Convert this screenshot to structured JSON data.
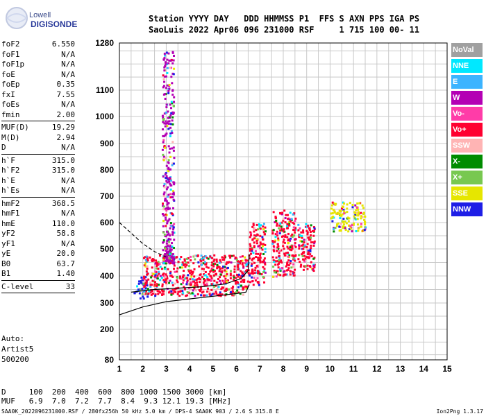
{
  "logo": {
    "line1": "Lowell",
    "line2": "DIGISONDE"
  },
  "header": {
    "line1": "Station YYYY DAY   DDD HHMMSS P1  FFS S AXN PPS IGA PS",
    "line2": "SaoLuis 2022 Apr06 096 231000 RSF     1 715 100 00- 11"
  },
  "params": [
    {
      "label": "foF2",
      "value": "6.550"
    },
    {
      "label": "foF1",
      "value": "N/A"
    },
    {
      "label": "foF1p",
      "value": "N/A"
    },
    {
      "label": "foE",
      "value": "N/A"
    },
    {
      "label": "foEp",
      "value": "0.35"
    },
    {
      "label": "fxI",
      "value": "7.55"
    },
    {
      "label": "foEs",
      "value": "N/A"
    },
    {
      "label": "fmin",
      "value": "2.00"
    },
    {
      "sep": true
    },
    {
      "label": "MUF(D)",
      "value": "19.29"
    },
    {
      "label": "M(D)",
      "value": "2.94"
    },
    {
      "label": "D",
      "value": "N/A"
    },
    {
      "sep": true
    },
    {
      "label": "h`F",
      "value": "315.0"
    },
    {
      "label": "h`F2",
      "value": "315.0"
    },
    {
      "label": "h`E",
      "value": "N/A"
    },
    {
      "label": "h`Es",
      "value": "N/A"
    },
    {
      "sep": true
    },
    {
      "label": "hmF2",
      "value": "368.5"
    },
    {
      "label": "hmF1",
      "value": "N/A"
    },
    {
      "label": "hmE",
      "value": "110.0"
    },
    {
      "label": "yF2",
      "value": "58.8"
    },
    {
      "label": "yF1",
      "value": "N/A"
    },
    {
      "label": "yE",
      "value": "20.0"
    },
    {
      "label": "B0",
      "value": "63.7"
    },
    {
      "label": "B1",
      "value": "1.40"
    },
    {
      "sep": true
    },
    {
      "label": "C-level",
      "value": "33"
    },
    {
      "sep": true
    }
  ],
  "autoscaling": {
    "line1": "Auto:",
    "line2": "Artist5",
    "line3": "500200"
  },
  "dmuf": {
    "dline": "D     100  200  400  600  800 1000 1500 3000 [km]",
    "mufline": "MUF   6.9  7.0  7.2  7.7  8.4  9.3 12.1 19.3 [MHz]"
  },
  "footer": {
    "left": "SAA0K_2022096231000.RSF / 280fx256h 50 kHz 5.0 km / DPS-4 SAA0K 903 / 2.6 S 315.8 E",
    "right": "Ion2Png 1.3.17"
  },
  "legend": [
    {
      "label": "NoVal",
      "color": "#a0a0a0"
    },
    {
      "label": "NNE",
      "color": "#00e8ff"
    },
    {
      "label": "E",
      "color": "#3cb4ff"
    },
    {
      "label": "W",
      "color": "#b400b4"
    },
    {
      "label": "Vo-",
      "color": "#ff3ca8"
    },
    {
      "label": "Vo+",
      "color": "#ff0030"
    },
    {
      "label": "SSW",
      "color": "#ffb4b4"
    },
    {
      "label": "X-",
      "color": "#008c00"
    },
    {
      "label": "X+",
      "color": "#78c850"
    },
    {
      "label": "SSE",
      "color": "#e6e600"
    },
    {
      "label": "NNW",
      "color": "#1e1ee6"
    }
  ],
  "chart_data": {
    "type": "scatter",
    "title": "",
    "xlabel": "",
    "ylabel": "",
    "xlim": [
      1,
      15
    ],
    "ylim": [
      80,
      1280
    ],
    "x_ticks": [
      1,
      2,
      3,
      4,
      5,
      6,
      7,
      8,
      9,
      10,
      11,
      12,
      13,
      14,
      15
    ],
    "y_ticks": [
      80,
      200,
      300,
      400,
      500,
      600,
      700,
      800,
      900,
      1000,
      1100,
      1280
    ],
    "y_scale": "nonlinear",
    "grid": true,
    "legend_position": "right",
    "echo_clusters": [
      {
        "fmin": 1.6,
        "fmax": 2.2,
        "hmin": 320,
        "hmax": 400,
        "main_color": "NNW"
      },
      {
        "fmin": 2.0,
        "fmax": 6.5,
        "hmin": 330,
        "hmax": 480,
        "main_color": "Vo+"
      },
      {
        "fmin": 2.8,
        "fmax": 3.3,
        "hmin": 450,
        "hmax": 1250,
        "main_color": "W"
      },
      {
        "fmin": 6.5,
        "fmax": 7.2,
        "hmin": 370,
        "hmax": 600,
        "main_color": "Vo+"
      },
      {
        "fmin": 7.5,
        "fmax": 8.5,
        "hmin": 400,
        "hmax": 650,
        "main_color": "Vo+"
      },
      {
        "fmin": 8.6,
        "fmax": 9.3,
        "hmin": 420,
        "hmax": 600,
        "main_color": "Vo+"
      },
      {
        "fmin": 10.0,
        "fmax": 11.5,
        "hmin": 570,
        "hmax": 680,
        "main_color": "SSE"
      }
    ],
    "profile_curve": {
      "f": [
        1.0,
        2.0,
        3.0,
        4.0,
        5.0,
        6.0,
        6.4,
        6.55
      ],
      "h": [
        255,
        285,
        305,
        315,
        325,
        335,
        340,
        368
      ]
    },
    "trace_curve": {
      "f": [
        1.5,
        2.5,
        3.5,
        4.5,
        5.5,
        6.2,
        6.5,
        6.55
      ],
      "h": [
        340,
        350,
        355,
        360,
        370,
        390,
        420,
        480
      ]
    },
    "dashed_curve": {
      "f": [
        1.0,
        1.5,
        2.0,
        2.5,
        3.0
      ],
      "h": [
        600,
        560,
        520,
        490,
        470
      ]
    }
  }
}
